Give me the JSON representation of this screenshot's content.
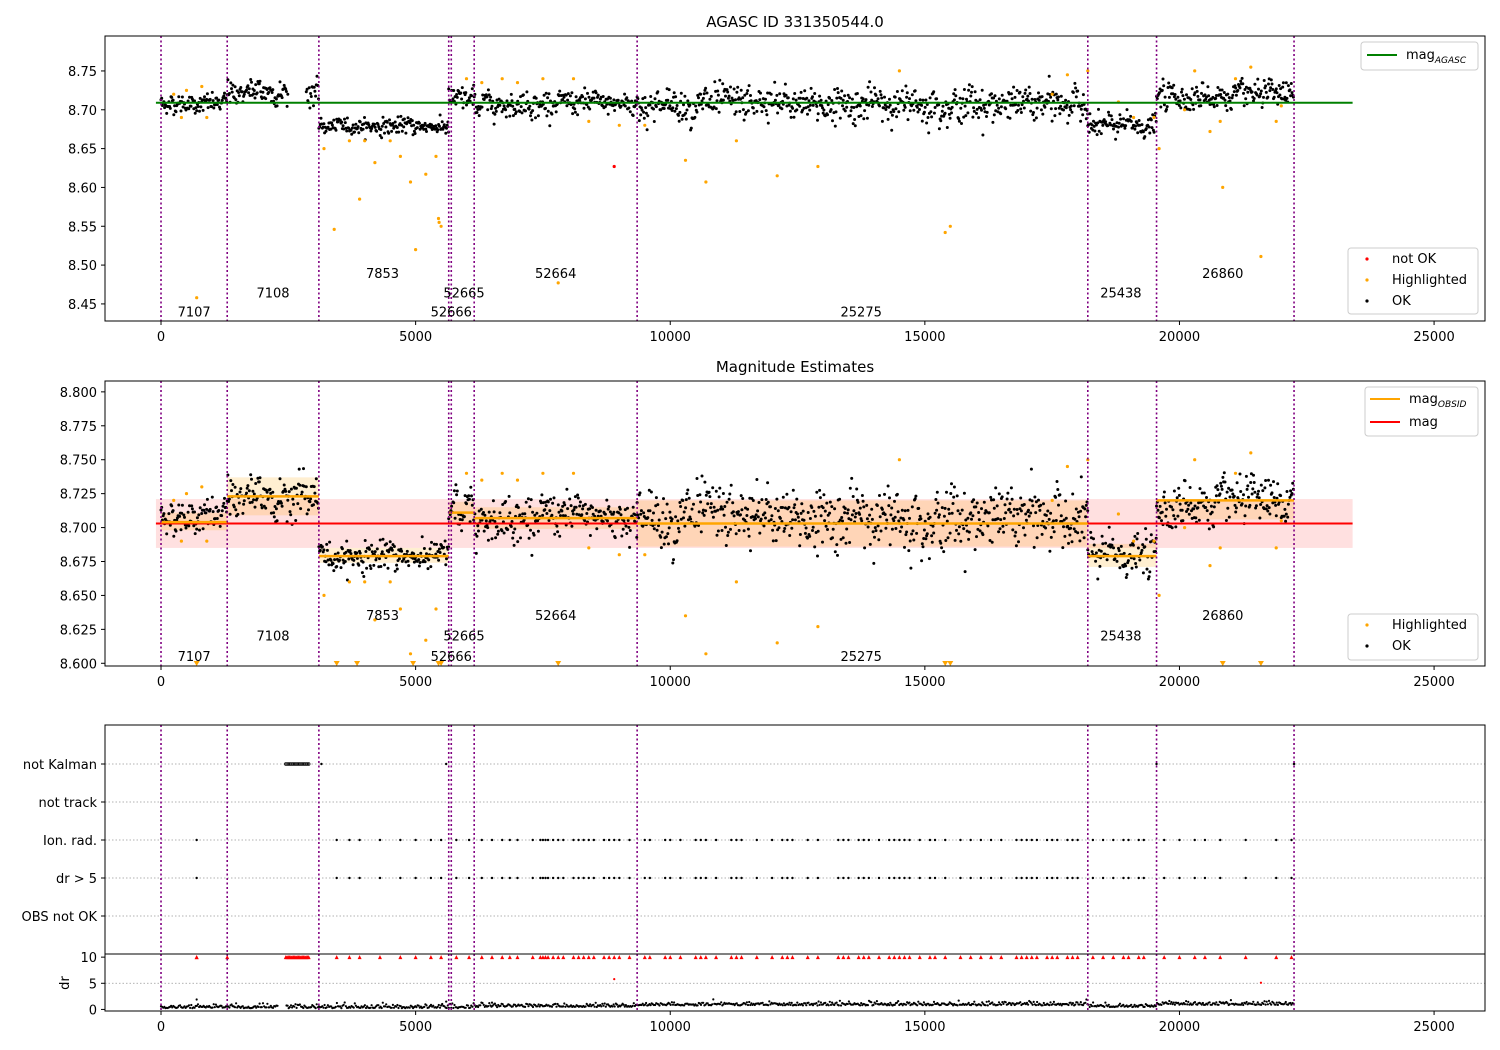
{
  "chart_data": [
    {
      "type": "scatter",
      "title": "AGASC ID 331350544.0",
      "xlim": [
        -1100,
        26000
      ],
      "ylim": [
        8.428,
        8.795
      ],
      "yticks": [
        "8.45",
        "8.50",
        "8.55",
        "8.60",
        "8.65",
        "8.70",
        "8.75"
      ],
      "xticks": [
        "0",
        "5000",
        "10000",
        "15000",
        "20000",
        "25000"
      ],
      "obsid_boundaries": [
        0,
        1300,
        3100,
        5650,
        5700,
        6150,
        9350,
        18200,
        19550,
        22250
      ],
      "obsid_labels": [
        {
          "text": "7107",
          "x": 650,
          "y": 8.44
        },
        {
          "text": "7108",
          "x": 2200,
          "y": 8.465
        },
        {
          "text": "7853",
          "x": 4350,
          "y": 8.49
        },
        {
          "text": "52665",
          "x": 5950,
          "y": 8.465
        },
        {
          "text": "52666",
          "x": 5700,
          "y": 8.44
        },
        {
          "text": "52664",
          "x": 7750,
          "y": 8.49
        },
        {
          "text": "25275",
          "x": 13750,
          "y": 8.44
        },
        {
          "text": "25438",
          "x": 18850,
          "y": 8.465
        },
        {
          "text": "26860",
          "x": 20850,
          "y": 8.49
        }
      ],
      "legend": {
        "position": "upper right",
        "entries": [
          "mag_AGASC"
        ],
        "subscript": "AGASC",
        "base": "mag"
      },
      "legend2": {
        "position": "lower right",
        "entries": [
          "not OK",
          "Highlighted",
          "OK"
        ]
      },
      "mag_agasc": 8.709,
      "mag_line_x": [
        -100,
        23400
      ],
      "segments": [
        {
          "x": [
            0,
            1300
          ],
          "mean": 8.708,
          "sd": 0.007
        },
        {
          "x": [
            1300,
            3100
          ],
          "mean": 8.723,
          "sd": 0.01
        },
        {
          "x": [
            3100,
            5650
          ],
          "mean": 8.679,
          "sd": 0.006
        },
        {
          "x": [
            5650,
            6150
          ],
          "mean": 8.712,
          "sd": 0.009
        },
        {
          "x": [
            6150,
            9350
          ],
          "mean": 8.708,
          "sd": 0.009
        },
        {
          "x": [
            9350,
            18200
          ],
          "mean": 8.707,
          "sd": 0.013
        },
        {
          "x": [
            18200,
            19550
          ],
          "mean": 8.679,
          "sd": 0.009
        },
        {
          "x": [
            19550,
            22250
          ],
          "mean": 8.717,
          "sd": 0.01
        }
      ],
      "gap": [
        2500,
        2850
      ],
      "series": [
        {
          "name": "not OK",
          "color": "#ff0000",
          "points": [
            [
              8900,
              8.627
            ]
          ]
        },
        {
          "name": "Highlighted",
          "color": "#ffa500",
          "points": [
            [
              250,
              8.72
            ],
            [
              400,
              8.69
            ],
            [
              500,
              8.725
            ],
            [
              700,
              8.458
            ],
            [
              800,
              8.73
            ],
            [
              900,
              8.69
            ],
            [
              3200,
              8.65
            ],
            [
              3400,
              8.546
            ],
            [
              3700,
              8.66
            ],
            [
              3900,
              8.585
            ],
            [
              4000,
              8.66
            ],
            [
              4200,
              8.632
            ],
            [
              4500,
              8.66
            ],
            [
              4700,
              8.64
            ],
            [
              4900,
              8.607
            ],
            [
              5000,
              8.52
            ],
            [
              5200,
              8.617
            ],
            [
              5400,
              8.64
            ],
            [
              5450,
              8.56
            ],
            [
              5460,
              8.555
            ],
            [
              5500,
              8.55
            ],
            [
              6000,
              8.74
            ],
            [
              6300,
              8.735
            ],
            [
              6700,
              8.74
            ],
            [
              7000,
              8.735
            ],
            [
              7500,
              8.74
            ],
            [
              7800,
              8.477
            ],
            [
              8100,
              8.74
            ],
            [
              8400,
              8.685
            ],
            [
              9000,
              8.68
            ],
            [
              9500,
              8.68
            ],
            [
              10300,
              8.635
            ],
            [
              10700,
              8.607
            ],
            [
              11300,
              8.66
            ],
            [
              12100,
              8.615
            ],
            [
              12900,
              8.627
            ],
            [
              14500,
              8.75
            ],
            [
              15400,
              8.542
            ],
            [
              15500,
              8.55
            ],
            [
              17500,
              8.72
            ],
            [
              17800,
              8.745
            ],
            [
              18200,
              8.75
            ],
            [
              18800,
              8.71
            ],
            [
              19100,
              8.69
            ],
            [
              19500,
              8.69
            ],
            [
              19600,
              8.65
            ],
            [
              20100,
              8.7
            ],
            [
              20300,
              8.75
            ],
            [
              20600,
              8.672
            ],
            [
              20800,
              8.685
            ],
            [
              20850,
              8.6
            ],
            [
              21100,
              8.74
            ],
            [
              21400,
              8.755
            ],
            [
              21600,
              8.511
            ],
            [
              21900,
              8.685
            ],
            [
              22000,
              8.705
            ]
          ]
        },
        {
          "name": "OK",
          "color": "#000000",
          "points": []
        }
      ]
    },
    {
      "type": "scatter",
      "title": "Magnitude Estimates",
      "xlim": [
        -1100,
        26000
      ],
      "ylim": [
        8.598,
        8.808
      ],
      "yticks": [
        "8.600",
        "8.625",
        "8.650",
        "8.675",
        "8.700",
        "8.725",
        "8.750",
        "8.775",
        "8.800"
      ],
      "xticks": [
        "0",
        "5000",
        "10000",
        "15000",
        "20000",
        "25000"
      ],
      "obsid_labels": [
        {
          "text": "7107",
          "x": 650,
          "y": 8.6055
        },
        {
          "text": "7108",
          "x": 2200,
          "y": 8.6205
        },
        {
          "text": "7853",
          "x": 4350,
          "y": 8.6355
        },
        {
          "text": "52665",
          "x": 5950,
          "y": 8.6205
        },
        {
          "text": "52666",
          "x": 5700,
          "y": 8.6055
        },
        {
          "text": "52664",
          "x": 7750,
          "y": 8.6355
        },
        {
          "text": "25275",
          "x": 13750,
          "y": 8.6055
        },
        {
          "text": "25438",
          "x": 18850,
          "y": 8.6205
        },
        {
          "text": "26860",
          "x": 20850,
          "y": 8.6355
        }
      ],
      "legend": {
        "position": "upper right",
        "entries": [
          "mag_OBSID",
          "mag"
        ],
        "subscript": "OBSID",
        "base": "mag",
        "second": "mag"
      },
      "legend2": {
        "position": "lower right",
        "entries": [
          "Highlighted",
          "OK"
        ]
      },
      "mag": 8.703,
      "mag_band": [
        8.685,
        8.721
      ],
      "mag_obsid": [
        {
          "x": [
            0,
            1300
          ],
          "value": 8.704,
          "band": [
            8.698,
            8.711
          ]
        },
        {
          "x": [
            1300,
            3100
          ],
          "value": 8.723,
          "band": [
            8.709,
            8.737
          ]
        },
        {
          "x": [
            3100,
            5650
          ],
          "value": 8.679,
          "band": [
            8.674,
            8.685
          ]
        },
        {
          "x": [
            5650,
            6150
          ],
          "value": 8.711,
          "band": [
            8.703,
            8.719
          ]
        },
        {
          "x": [
            6150,
            9350
          ],
          "value": 8.707,
          "band": [
            8.699,
            8.715
          ]
        },
        {
          "x": [
            9350,
            18200
          ],
          "value": 8.703,
          "band": [
            8.686,
            8.72
          ]
        },
        {
          "x": [
            18200,
            19550
          ],
          "value": 8.679,
          "band": [
            8.671,
            8.688
          ]
        },
        {
          "x": [
            19550,
            22250
          ],
          "value": 8.72,
          "band": [
            8.706,
            8.72
          ]
        }
      ],
      "low_markers_x": [
        700,
        3450,
        3850,
        4950,
        5450,
        5500,
        7800,
        15400,
        15500,
        20850,
        21600
      ]
    },
    {
      "type": "scatter",
      "xlim": [
        -1100,
        26000
      ],
      "xticks": [
        "0",
        "5000",
        "10000",
        "15000",
        "20000",
        "25000"
      ],
      "flag_rows": [
        "not Kalman",
        "not track",
        "Ion. rad.",
        "dr > 5",
        "OBS not OK"
      ],
      "flag_points": {
        "not Kalman": [
          [
            2450,
            2900
          ],
          [
            3150
          ],
          [
            5600
          ],
          [
            19550
          ],
          [
            22250
          ]
        ],
        "Ion. rad.": [
          700,
          3450,
          3700,
          3900,
          4300,
          4700,
          5000,
          5300,
          5500,
          5800,
          6050,
          6300,
          6500,
          6700,
          6850,
          7000,
          7300,
          7450,
          7500,
          7550,
          7600,
          7700,
          7800,
          7900,
          8100,
          8200,
          8300,
          8400,
          8500,
          8700,
          8800,
          8900,
          9000,
          9200,
          9500,
          9600,
          9900,
          10000,
          10200,
          10500,
          10600,
          10700,
          10900,
          11200,
          11300,
          11400,
          11700,
          12000,
          12200,
          12300,
          12400,
          12700,
          12900,
          13300,
          13400,
          13500,
          13700,
          13800,
          13900,
          14100,
          14300,
          14400,
          14500,
          14600,
          14700,
          14900,
          15100,
          15200,
          15400,
          15700,
          15900,
          16100,
          16300,
          16500,
          16800,
          16900,
          17000,
          17100,
          17200,
          17400,
          17500,
          17600,
          17800,
          17900,
          18000,
          18300,
          18500,
          18700,
          18900,
          19000,
          19200,
          19300,
          19700,
          20000,
          20300,
          20500,
          20800,
          21300,
          21900,
          22200
        ]
      },
      "dr_label": "dr",
      "dr_yticks": [
        "0",
        "5",
        "10"
      ],
      "dr_ylim": [
        -0.3,
        10.6
      ],
      "dr_special": [
        [
          700,
          1.9
        ],
        [
          8900,
          5.8
        ],
        [
          21600,
          5.1
        ],
        [
          5600,
          1.5
        ],
        [
          6500,
          1.3
        ]
      ]
    }
  ]
}
